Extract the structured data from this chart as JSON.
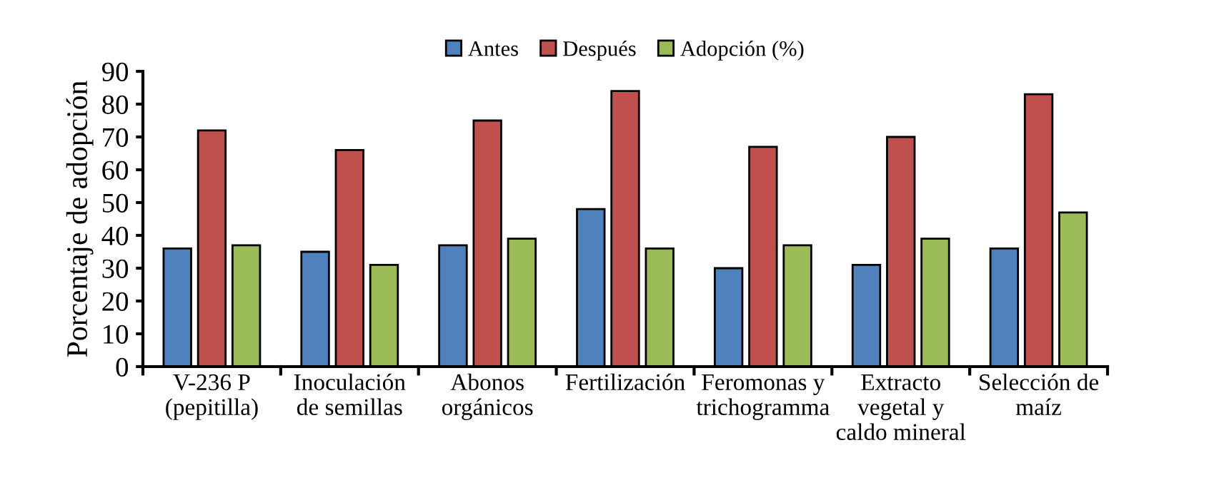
{
  "chart_data": {
    "type": "bar",
    "ylabel": "Porcentaje de adopción",
    "categories": [
      "V-236 P\n(pepitilla)",
      "Inoculación\nde semillas",
      "Abonos\norgánicos",
      "Fertilización",
      "Feromonas y\ntrichogramma",
      "Extracto\nvegetal y\ncaldo mineral",
      "Selección de\nmaíz"
    ],
    "series": [
      {
        "name": "Antes",
        "color": "#4f81bd",
        "values": [
          36,
          35,
          37,
          48,
          30,
          31,
          36
        ]
      },
      {
        "name": "Después",
        "color": "#c0504d",
        "values": [
          72,
          66,
          75,
          84,
          67,
          70,
          83
        ]
      },
      {
        "name": "Adopción (%)",
        "color": "#9bbb59",
        "values": [
          37,
          31,
          39,
          36,
          37,
          39,
          47
        ]
      }
    ],
    "ylim": [
      0,
      90
    ],
    "yticks": [
      0,
      10,
      20,
      30,
      40,
      50,
      60,
      70,
      80,
      90
    ],
    "grid": false,
    "legend": "top"
  }
}
